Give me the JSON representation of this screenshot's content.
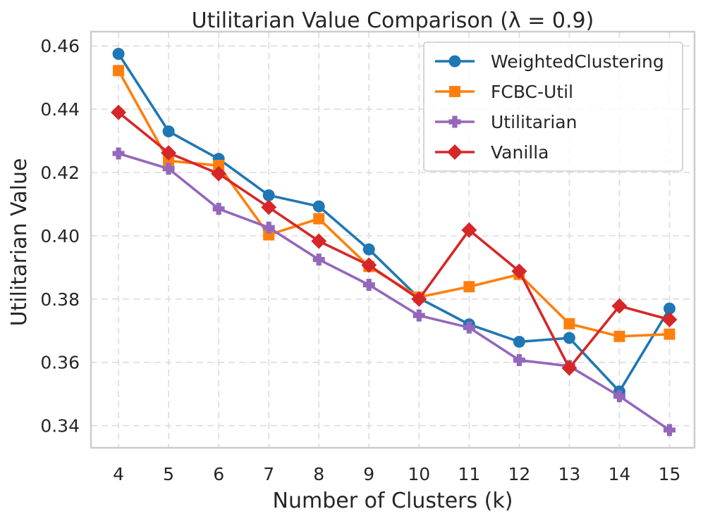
{
  "chart_data": {
    "type": "line",
    "title": "Utilitarian Value Comparison (λ = 0.9)",
    "xlabel": "Number of Clusters (k)",
    "ylabel": "Utilitarian Value",
    "x": [
      4,
      5,
      6,
      7,
      8,
      9,
      10,
      11,
      12,
      13,
      14,
      15
    ],
    "x_tick_labels": [
      "4",
      "5",
      "6",
      "7",
      "8",
      "9",
      "10",
      "11",
      "12",
      "13",
      "14",
      "15"
    ],
    "y_ticks": [
      0.34,
      0.36,
      0.38,
      0.4,
      0.42,
      0.44,
      0.46
    ],
    "y_tick_labels": [
      "0.34",
      "0.36",
      "0.38",
      "0.40",
      "0.42",
      "0.44",
      "0.46"
    ],
    "xlim": [
      3.45,
      15.5
    ],
    "ylim": [
      0.333,
      0.4645
    ],
    "grid": true,
    "legend_position": "top-right",
    "series": [
      {
        "name": "WeightedClustering",
        "color": "#1f77b4",
        "marker": "circle",
        "values": [
          0.4575,
          0.433,
          0.4243,
          0.4128,
          0.4093,
          0.3957,
          0.3803,
          0.372,
          0.3665,
          0.3677,
          0.3508,
          0.377
        ]
      },
      {
        "name": "FCBC-Util",
        "color": "#ff7f0e",
        "marker": "square",
        "values": [
          0.4522,
          0.4237,
          0.4222,
          0.4003,
          0.4054,
          0.3903,
          0.3806,
          0.3839,
          0.3878,
          0.3722,
          0.3682,
          0.3689
        ]
      },
      {
        "name": "Utilitarian",
        "color": "#9467bd",
        "marker": "plus",
        "values": [
          0.426,
          0.4212,
          0.4085,
          0.4026,
          0.3925,
          0.3845,
          0.3748,
          0.371,
          0.3607,
          0.3588,
          0.3493,
          0.3386
        ]
      },
      {
        "name": "Vanilla",
        "color": "#d62728",
        "marker": "diamond",
        "values": [
          0.439,
          0.4262,
          0.4196,
          0.409,
          0.3983,
          0.3907,
          0.38,
          0.4018,
          0.3888,
          0.3582,
          0.3778,
          0.3735
        ]
      }
    ]
  }
}
